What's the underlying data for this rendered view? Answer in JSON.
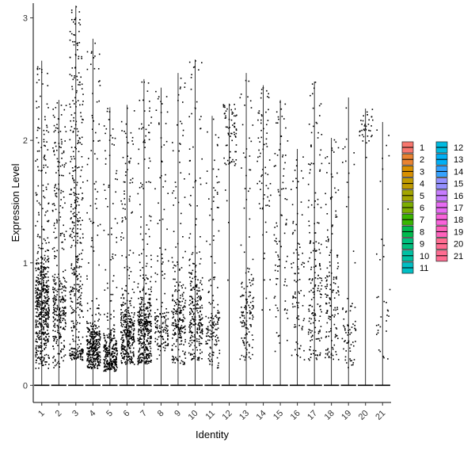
{
  "chart_data": {
    "type": "violin-jitter",
    "title": "",
    "xlabel": "Identity",
    "ylabel": "Expression Level",
    "ylim": [
      -0.14,
      3.12
    ],
    "yticks": [
      0,
      1,
      2,
      3
    ],
    "grid": false,
    "legend_position": "right",
    "categories": [
      "1",
      "2",
      "3",
      "4",
      "5",
      "6",
      "7",
      "8",
      "9",
      "10",
      "11",
      "12",
      "13",
      "14",
      "15",
      "16",
      "17",
      "18",
      "19",
      "20",
      "21"
    ],
    "colors": [
      "#F8766D",
      "#EA8331",
      "#D89000",
      "#C09B00",
      "#A3A500",
      "#7CAE00",
      "#39B600",
      "#00BB4E",
      "#00BF7D",
      "#00C1A3",
      "#00BFC4",
      "#00BAE0",
      "#00B0F6",
      "#35A2FF",
      "#9590FF",
      "#C77CFF",
      "#E76BF3",
      "#FA62DB",
      "#FF62BC",
      "#FF6C91",
      "#FF6C91"
    ],
    "series": [
      {
        "name": "1",
        "max": 2.65,
        "density": 0.95,
        "low": 0.2,
        "high": 1.0,
        "center": 0.6,
        "upper_frac": 0.25
      },
      {
        "name": "2",
        "max": 2.33,
        "density": 0.55,
        "low": 0.2,
        "high": 0.9,
        "center": 0.55,
        "upper_frac": 0.45
      },
      {
        "name": "3",
        "max": 3.1,
        "density": 0.7,
        "low": 0.3,
        "high": 2.5,
        "center": 0.6,
        "upper_frac": 0.5
      },
      {
        "name": "4",
        "max": 2.83,
        "density": 0.6,
        "low": 0.2,
        "high": 0.6,
        "center": 0.3,
        "upper_frac": 0.2
      },
      {
        "name": "5",
        "max": 2.27,
        "density": 0.5,
        "low": 0.15,
        "high": 0.55,
        "center": 0.25,
        "upper_frac": 0.2
      },
      {
        "name": "6",
        "max": 2.29,
        "density": 0.6,
        "low": 0.25,
        "high": 0.8,
        "center": 0.4,
        "upper_frac": 0.2
      },
      {
        "name": "7",
        "max": 2.5,
        "density": 0.7,
        "low": 0.25,
        "high": 0.9,
        "center": 0.45,
        "upper_frac": 0.2
      },
      {
        "name": "8",
        "max": 2.43,
        "density": 0.25,
        "low": 0.3,
        "high": 0.7,
        "center": 0.45,
        "upper_frac": 0.35
      },
      {
        "name": "9",
        "max": 2.55,
        "density": 0.4,
        "low": 0.25,
        "high": 0.8,
        "center": 0.5,
        "upper_frac": 0.25
      },
      {
        "name": "10",
        "max": 2.66,
        "density": 0.45,
        "low": 0.3,
        "high": 0.9,
        "center": 0.55,
        "upper_frac": 0.2
      },
      {
        "name": "11",
        "max": 2.2,
        "density": 0.25,
        "low": 0.2,
        "high": 0.7,
        "center": 0.4,
        "upper_frac": 0.35
      },
      {
        "name": "12",
        "max": 2.3,
        "density": 0.12,
        "low": 1.0,
        "high": 2.3,
        "center": 1.8,
        "upper_frac": 0.8
      },
      {
        "name": "13",
        "max": 2.55,
        "density": 0.25,
        "low": 0.3,
        "high": 1.0,
        "center": 0.55,
        "upper_frac": 0.3
      },
      {
        "name": "14",
        "max": 2.45,
        "density": 0.12,
        "low": 0.8,
        "high": 2.4,
        "center": 1.4,
        "upper_frac": 0.7
      },
      {
        "name": "15",
        "max": 2.33,
        "density": 0.15,
        "low": 0.3,
        "high": 1.6,
        "center": 0.8,
        "upper_frac": 0.6
      },
      {
        "name": "16",
        "max": 1.93,
        "density": 0.15,
        "low": 0.3,
        "high": 1.3,
        "center": 0.6,
        "upper_frac": 0.5
      },
      {
        "name": "17",
        "max": 2.48,
        "density": 0.3,
        "low": 0.3,
        "high": 1.2,
        "center": 0.6,
        "upper_frac": 0.3
      },
      {
        "name": "18",
        "max": 2.02,
        "density": 0.25,
        "low": 0.3,
        "high": 1.2,
        "center": 0.6,
        "upper_frac": 0.3
      },
      {
        "name": "19",
        "max": 2.35,
        "density": 0.12,
        "low": 0.2,
        "high": 0.8,
        "center": 0.4,
        "upper_frac": 0.35
      },
      {
        "name": "20",
        "max": 2.26,
        "density": 0.06,
        "low": 1.7,
        "high": 2.26,
        "center": 2.0,
        "upper_frac": 0.9
      },
      {
        "name": "21",
        "max": 2.15,
        "density": 0.06,
        "low": 0.3,
        "high": 0.8,
        "center": 0.5,
        "upper_frac": 0.5
      }
    ]
  },
  "legend": {
    "column1": [
      "1",
      "2",
      "3",
      "4",
      "5",
      "6",
      "7",
      "8",
      "9",
      "10",
      "11"
    ],
    "column2": [
      "12",
      "13",
      "14",
      "15",
      "16",
      "17",
      "18",
      "19",
      "20",
      "21"
    ]
  }
}
